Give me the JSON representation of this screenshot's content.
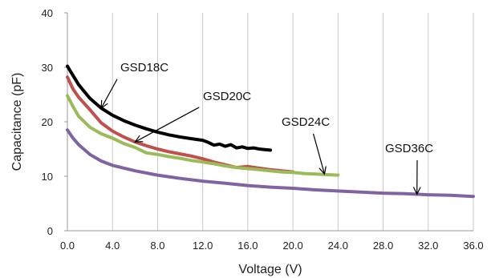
{
  "chart_data": {
    "type": "line",
    "title": "",
    "xlabel": "Voltage (V)",
    "ylabel": "Capacitance (pF)",
    "xlim": [
      0,
      36
    ],
    "ylim": [
      0,
      40
    ],
    "x_ticks": [
      "0.0",
      "4.0",
      "8.0",
      "12.0",
      "16.0",
      "20.0",
      "24.0",
      "28.0",
      "32.0",
      "36.0"
    ],
    "y_ticks": [
      "0",
      "10",
      "20",
      "30",
      "40"
    ],
    "grid": "vertical",
    "legend": "annotated",
    "series": [
      {
        "name": "GSD18C",
        "color": "#000000",
        "x": [
          0,
          0.5,
          1,
          2,
          3,
          4,
          5,
          6,
          7,
          8,
          9,
          10,
          11,
          12,
          12.5,
          13,
          13.5,
          14,
          14.5,
          15,
          15.5,
          16,
          16.5,
          17,
          17.5,
          18
        ],
        "y": [
          30.2,
          28.5,
          26.8,
          24.3,
          22.5,
          21.2,
          20.2,
          19.4,
          18.7,
          18.1,
          17.6,
          17.2,
          16.9,
          16.6,
          16.2,
          15.7,
          15.9,
          15.5,
          15.8,
          15.2,
          15.4,
          15.1,
          15.2,
          15.0,
          14.9,
          14.8
        ]
      },
      {
        "name": "GSD20C",
        "color": "#c0504d",
        "x": [
          0,
          0.5,
          1,
          2,
          3,
          4,
          5,
          6,
          7,
          8,
          9,
          10,
          11,
          12,
          13,
          14,
          15,
          16,
          17,
          18,
          19,
          20
        ],
        "y": [
          28.2,
          26.0,
          24.5,
          22.2,
          19.8,
          18.3,
          17.2,
          16.3,
          15.6,
          15.0,
          14.5,
          14.1,
          13.7,
          13.2,
          12.6,
          12.1,
          11.6,
          11.8,
          11.5,
          11.2,
          11.0,
          10.8
        ]
      },
      {
        "name": "GSD24C",
        "color": "#9bbb59",
        "x": [
          0,
          0.5,
          1,
          2,
          3,
          4,
          5,
          6,
          7,
          8,
          9,
          10,
          11,
          12,
          13,
          14,
          15,
          16,
          17,
          18,
          19,
          20,
          21,
          22,
          23,
          24
        ],
        "y": [
          24.8,
          22.8,
          21.0,
          19.0,
          17.8,
          17.0,
          16.0,
          15.3,
          14.3,
          14.0,
          13.6,
          13.3,
          12.9,
          12.6,
          12.3,
          11.9,
          11.6,
          11.4,
          11.2,
          11.0,
          10.8,
          10.7,
          10.5,
          10.4,
          10.3,
          10.2
        ]
      },
      {
        "name": "GSD36C",
        "color": "#8064a2",
        "x": [
          0,
          0.5,
          1,
          2,
          3,
          4,
          6,
          8,
          10,
          12,
          14,
          16,
          18,
          20,
          22,
          24,
          26,
          28,
          30,
          32,
          34,
          36
        ],
        "y": [
          18.5,
          17.0,
          15.8,
          14.0,
          12.8,
          12.0,
          11.0,
          10.2,
          9.6,
          9.1,
          8.7,
          8.3,
          8.0,
          7.8,
          7.5,
          7.3,
          7.1,
          6.9,
          6.8,
          6.6,
          6.5,
          6.3
        ]
      }
    ],
    "annotations": [
      {
        "text": "GSD18C",
        "series": "GSD18C",
        "point": [
          3.0,
          22.5
        ]
      },
      {
        "text": "GSD20C",
        "series": "GSD20C",
        "point": [
          6.0,
          16.3
        ]
      },
      {
        "text": "GSD24C",
        "series": "GSD24C",
        "point": [
          22.8,
          10.4
        ]
      },
      {
        "text": "GSD36C",
        "series": "GSD36C",
        "point": [
          31.0,
          6.7
        ]
      }
    ]
  }
}
